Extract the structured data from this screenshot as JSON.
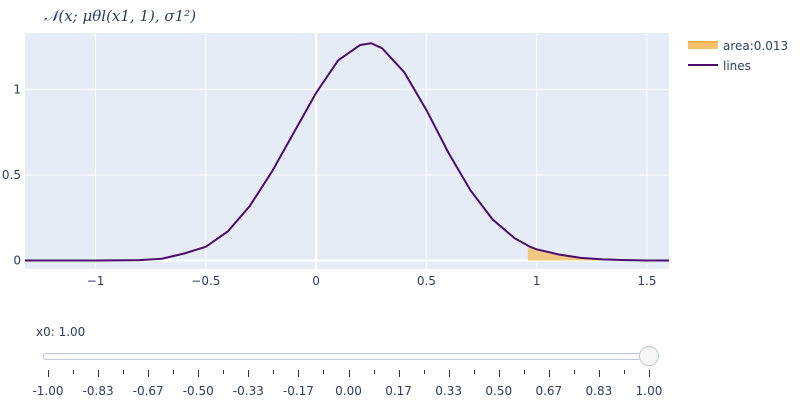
{
  "chart_data": {
    "type": "area",
    "title": "𝒩(x; μθl(x1, 1), σ1²)",
    "xlim": [
      -1.32,
      1.6
    ],
    "ylim": [
      -0.05,
      1.33
    ],
    "x_ticks": [
      -1,
      -0.5,
      0,
      0.5,
      1,
      1.5
    ],
    "x_tick_labels": [
      "−1",
      "−0.5",
      "0",
      "0.5",
      "1",
      "1.5"
    ],
    "y_ticks": [
      0,
      0.5,
      1
    ],
    "y_tick_labels": [
      "0",
      "0.5",
      "1"
    ],
    "grid": true,
    "legend_position": "top-right",
    "series": [
      {
        "name": "lines",
        "color": "#4b0c6b",
        "x": [
          -1.32,
          -1.0,
          -0.8,
          -0.7,
          -0.6,
          -0.5,
          -0.4,
          -0.3,
          -0.2,
          -0.1,
          0.0,
          0.1,
          0.2,
          0.25,
          0.3,
          0.4,
          0.5,
          0.6,
          0.7,
          0.8,
          0.9,
          0.97,
          1.0,
          1.1,
          1.2,
          1.3,
          1.4,
          1.5,
          1.6
        ],
        "y": [
          0.0,
          0.0,
          0.002,
          0.01,
          0.04,
          0.08,
          0.17,
          0.32,
          0.52,
          0.75,
          0.98,
          1.17,
          1.26,
          1.27,
          1.24,
          1.1,
          0.88,
          0.63,
          0.41,
          0.24,
          0.13,
          0.08,
          0.065,
          0.035,
          0.015,
          0.006,
          0.002,
          0.0,
          0.0
        ]
      },
      {
        "name": "area:0.013",
        "type": "filled-area",
        "color": "#f5c26b",
        "x": [
          0.96,
          1.0,
          1.05,
          1.1,
          1.15,
          1.2,
          1.3,
          1.4,
          1.5,
          1.6
        ],
        "y": [
          0.095,
          0.065,
          0.045,
          0.035,
          0.025,
          0.015,
          0.006,
          0.002,
          0.0,
          0.0
        ]
      }
    ],
    "legend": [
      {
        "label": "area:0.013",
        "color": "#f5c26b",
        "kind": "area"
      },
      {
        "label": "lines",
        "color": "#4b0c6b",
        "kind": "line"
      }
    ]
  },
  "slider": {
    "current_label": "x0: 1.00",
    "value": 1.0,
    "min": -1.0,
    "max": 1.0,
    "tick_labels": [
      "-1.00",
      "-0.83",
      "-0.67",
      "-0.50",
      "-0.33",
      "-0.17",
      "0.00",
      "0.17",
      "0.33",
      "0.50",
      "0.67",
      "0.83",
      "1.00"
    ]
  }
}
